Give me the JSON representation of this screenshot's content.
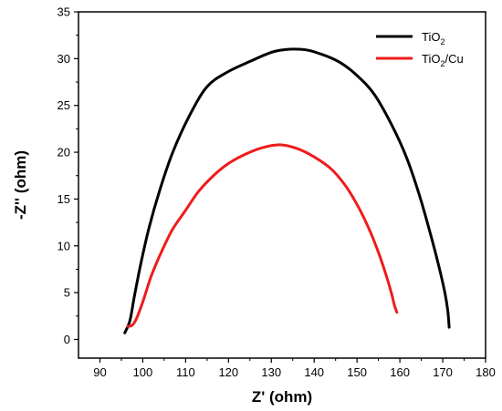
{
  "chart_data": {
    "type": "line",
    "xlabel": "Z' (ohm)",
    "ylabel": "-Z'' (ohm)",
    "xlim": [
      85,
      180
    ],
    "ylim": [
      -2,
      35
    ],
    "x_ticks": [
      90,
      100,
      110,
      120,
      130,
      140,
      150,
      160,
      170,
      180
    ],
    "y_ticks": [
      0,
      5,
      10,
      15,
      20,
      25,
      30,
      35
    ],
    "grid": false,
    "legend_position": "top-right",
    "series": [
      {
        "name": "TiO2",
        "legend_base": "TiO",
        "legend_sub": "2",
        "legend_suffix": "",
        "color": "#000000",
        "points": [
          [
            95.8,
            0.7
          ],
          [
            97.0,
            2.0
          ],
          [
            98.0,
            4.5
          ],
          [
            99.5,
            8.0
          ],
          [
            101.5,
            12.0
          ],
          [
            104.0,
            16.0
          ],
          [
            107.0,
            20.0
          ],
          [
            111.0,
            24.0
          ],
          [
            115.0,
            27.0
          ],
          [
            119.5,
            28.5
          ],
          [
            125.0,
            29.7
          ],
          [
            131.0,
            30.8
          ],
          [
            137.0,
            31.0
          ],
          [
            141.5,
            30.5
          ],
          [
            146.0,
            29.6
          ],
          [
            150.0,
            28.2
          ],
          [
            154.0,
            26.2
          ],
          [
            158.0,
            23.0
          ],
          [
            161.5,
            19.5
          ],
          [
            164.5,
            15.5
          ],
          [
            167.0,
            11.5
          ],
          [
            169.0,
            8.0
          ],
          [
            170.5,
            5.0
          ],
          [
            171.2,
            3.0
          ],
          [
            171.5,
            1.3
          ]
        ]
      },
      {
        "name": "TiO2/Cu",
        "legend_base": "TiO",
        "legend_sub": "2",
        "legend_suffix": "/Cu",
        "color": "#ee1c1c",
        "points": [
          [
            96.5,
            1.4
          ],
          [
            97.5,
            1.5
          ],
          [
            98.5,
            2.2
          ],
          [
            100.0,
            4.0
          ],
          [
            102.0,
            6.8
          ],
          [
            104.5,
            9.5
          ],
          [
            107.0,
            11.8
          ],
          [
            110.0,
            13.8
          ],
          [
            113.0,
            15.8
          ],
          [
            116.5,
            17.5
          ],
          [
            120.0,
            18.8
          ],
          [
            124.0,
            19.8
          ],
          [
            128.0,
            20.5
          ],
          [
            132.0,
            20.8
          ],
          [
            136.0,
            20.4
          ],
          [
            140.0,
            19.5
          ],
          [
            144.0,
            18.2
          ],
          [
            147.5,
            16.3
          ],
          [
            150.5,
            14.0
          ],
          [
            153.0,
            11.6
          ],
          [
            155.0,
            9.3
          ],
          [
            156.7,
            7.0
          ],
          [
            158.0,
            5.0
          ],
          [
            158.7,
            3.7
          ],
          [
            159.3,
            2.9
          ]
        ]
      }
    ]
  }
}
